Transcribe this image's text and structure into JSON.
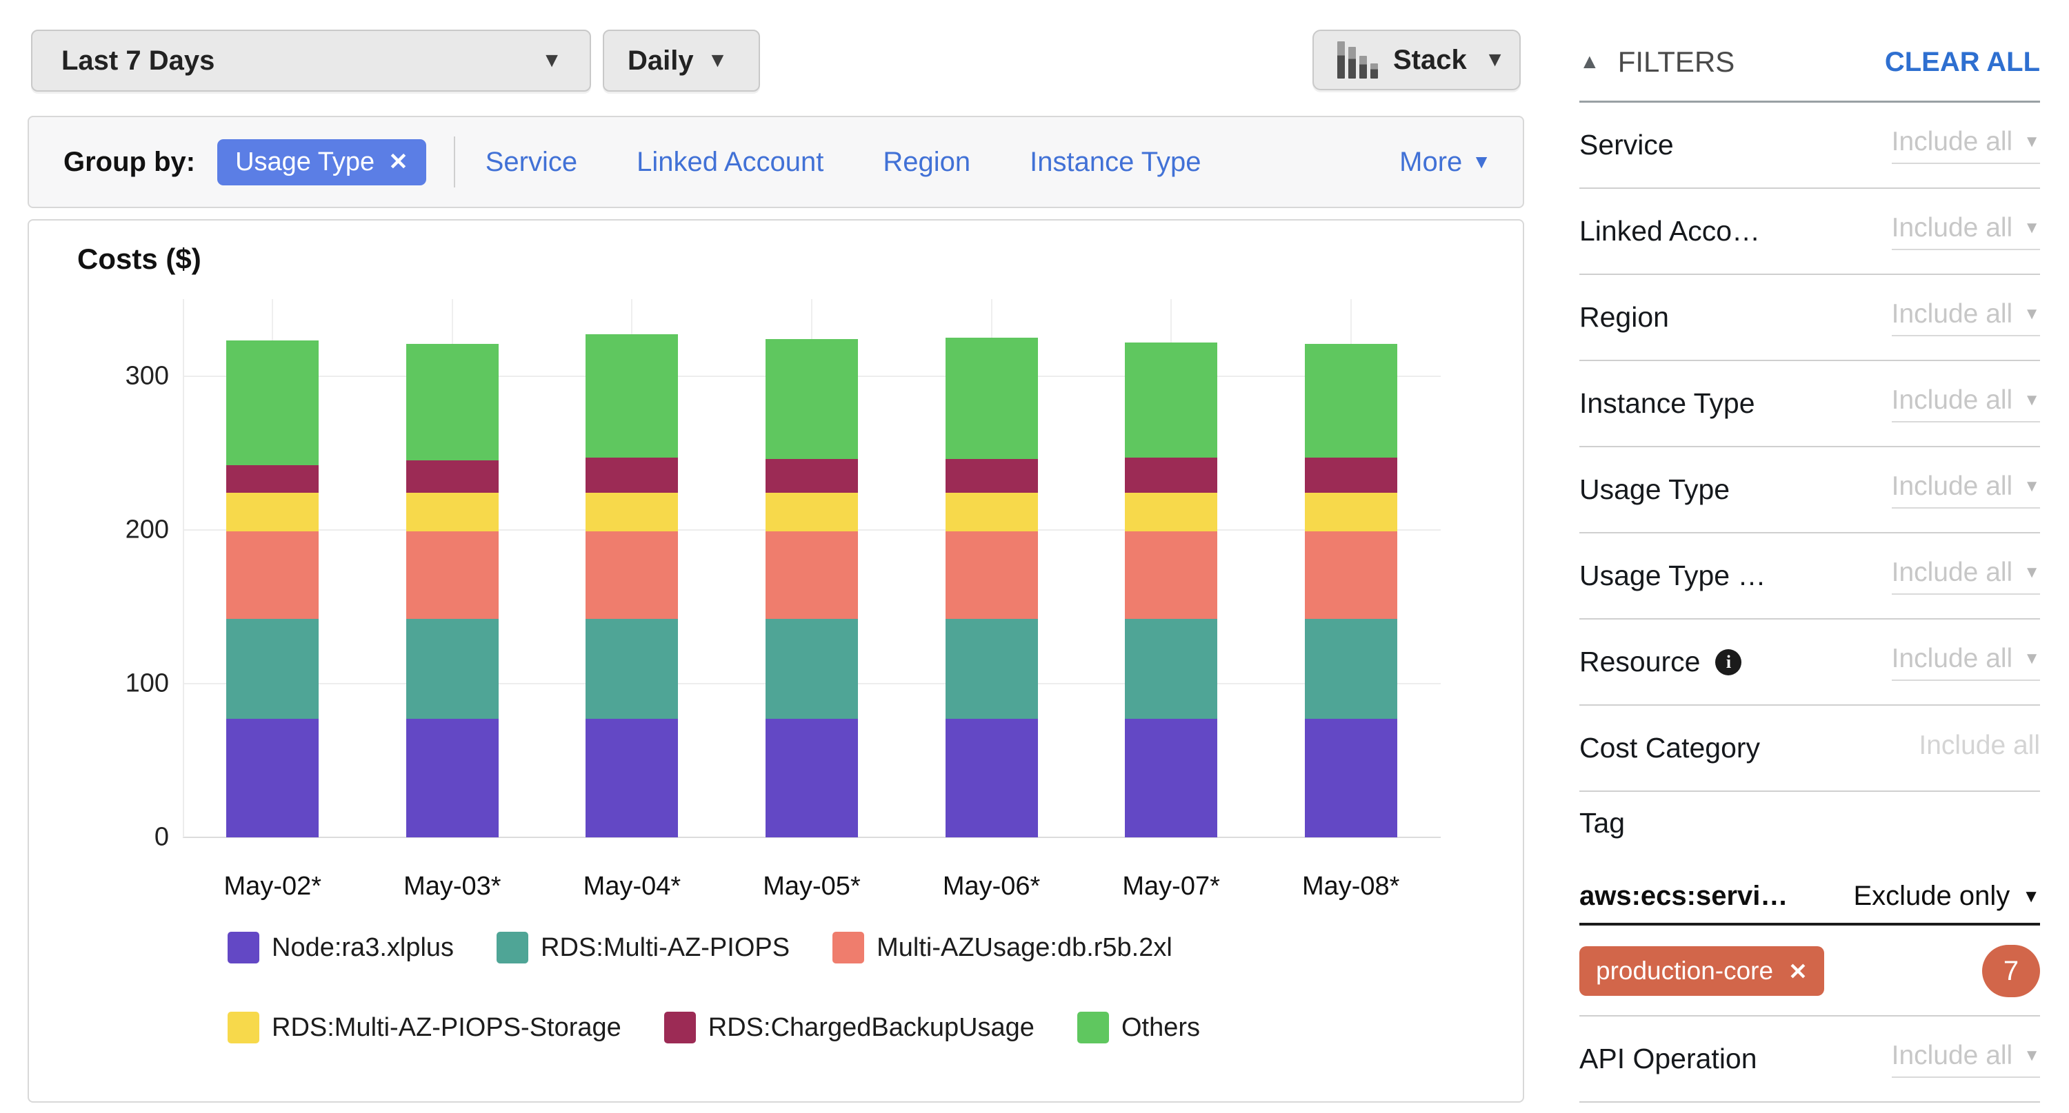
{
  "toolbar": {
    "date_range": "Last 7 Days",
    "granularity": "Daily",
    "chart_type": "Stack"
  },
  "group_by": {
    "label": "Group by:",
    "active": "Usage Type",
    "links": [
      "Service",
      "Linked Account",
      "Region",
      "Instance Type"
    ],
    "more": "More"
  },
  "chart_data": {
    "type": "bar",
    "stacked": true,
    "title": "Costs ($)",
    "categories": [
      "May-02*",
      "May-03*",
      "May-04*",
      "May-05*",
      "May-06*",
      "May-07*",
      "May-08*"
    ],
    "series": [
      {
        "name": "Node:ra3.xlplus",
        "color": "#6348c5",
        "values": [
          77,
          77,
          77,
          77,
          77,
          77,
          77
        ]
      },
      {
        "name": "RDS:Multi-AZ-PIOPS",
        "color": "#4fa596",
        "values": [
          65,
          65,
          65,
          65,
          65,
          65,
          65
        ]
      },
      {
        "name": "Multi-AZUsage:db.r5b.2xl",
        "color": "#ef7d6d",
        "values": [
          57,
          57,
          57,
          57,
          57,
          57,
          57
        ]
      },
      {
        "name": "RDS:Multi-AZ-PIOPS-Storage",
        "color": "#f7d94b",
        "values": [
          25,
          25,
          25,
          25,
          25,
          25,
          25
        ]
      },
      {
        "name": "RDS:ChargedBackupUsage",
        "color": "#9c2b55",
        "values": [
          18,
          21,
          23,
          22,
          22,
          23,
          23
        ]
      },
      {
        "name": "Others",
        "color": "#5fc75f",
        "values": [
          81,
          76,
          80,
          78,
          79,
          75,
          74
        ]
      }
    ],
    "y_ticks": [
      0,
      100,
      200,
      300
    ],
    "ylim": [
      0,
      350
    ],
    "grid": true,
    "legend_position": "bottom",
    "legend_rows": [
      [
        0,
        1,
        2
      ],
      [
        3,
        4,
        5
      ]
    ]
  },
  "filters": {
    "header": "FILTERS",
    "clear_all": "CLEAR ALL",
    "include_all_label": "Include all",
    "rows": [
      {
        "label": "Service"
      },
      {
        "label": "Linked Acco…"
      },
      {
        "label": "Region"
      },
      {
        "label": "Instance Type"
      },
      {
        "label": "Usage Type"
      },
      {
        "label": "Usage Type …"
      },
      {
        "label": "Resource",
        "info": true
      },
      {
        "label": "Cost Category",
        "muted": true
      }
    ],
    "tag": {
      "label": "Tag",
      "key": "aws:ecs:servi…",
      "mode": "Exclude only",
      "chip": "production-core",
      "badge": "7"
    },
    "api_row": {
      "label": "API Operation"
    }
  },
  "colors": {
    "accent_blue": "#5b7ee5",
    "link_blue": "#4171d6",
    "chip_orange": "#d2664a"
  }
}
